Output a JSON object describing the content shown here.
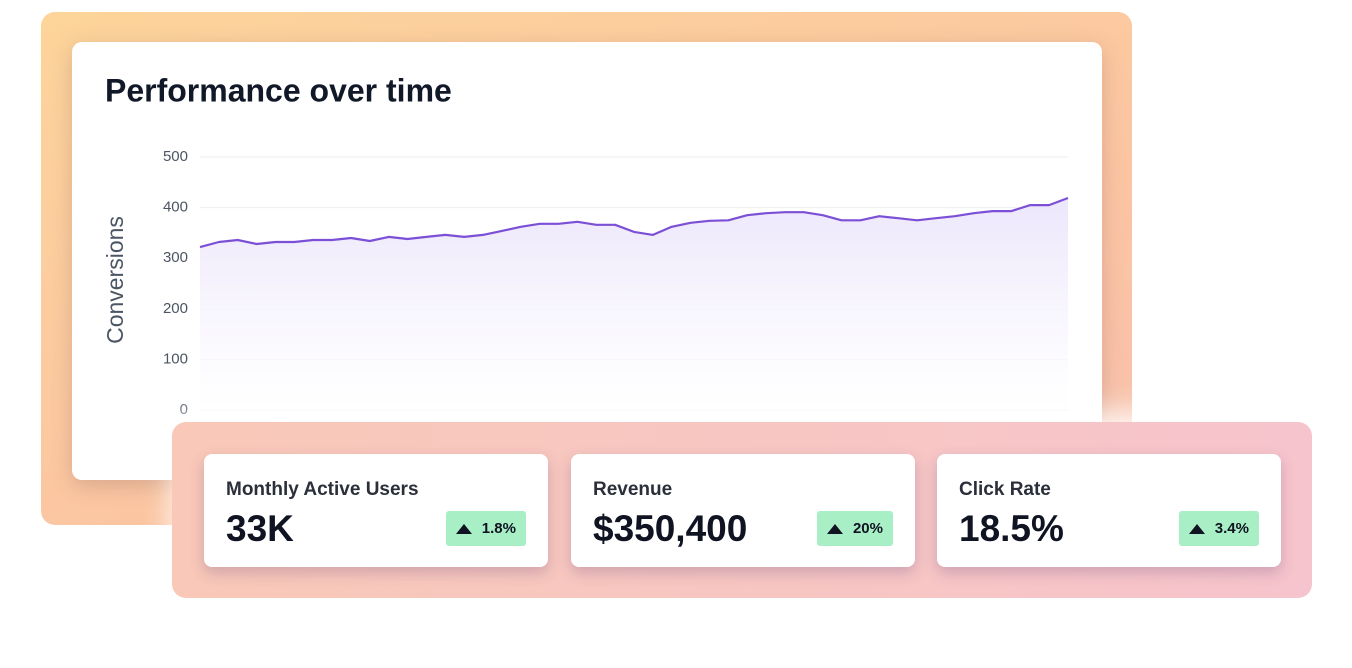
{
  "chart_data": {
    "type": "line",
    "title": "Performance over time",
    "y_label": "Conversions",
    "values": [
      322,
      332,
      336,
      328,
      332,
      332,
      336,
      336,
      340,
      334,
      342,
      338,
      342,
      346,
      342,
      346,
      354,
      362,
      368,
      368,
      372,
      366,
      366,
      352,
      346,
      362,
      370,
      374,
      375,
      385,
      389,
      391,
      391,
      385,
      375,
      375,
      383,
      379,
      375,
      379,
      383,
      389,
      393,
      393,
      405,
      405,
      419
    ],
    "color": "#7b4fd6",
    "ylim": [
      0,
      500
    ],
    "yticks": [
      0,
      100,
      200,
      300,
      400,
      500
    ],
    "grid": true
  },
  "cards": [
    {
      "label": "Monthly Active Users",
      "value": "33K",
      "change": "1.8%"
    },
    {
      "label": "Revenue",
      "value": "$350,400",
      "change": "20%"
    },
    {
      "label": "Click Rate",
      "value": "18.5%",
      "change": "3.4%"
    }
  ]
}
